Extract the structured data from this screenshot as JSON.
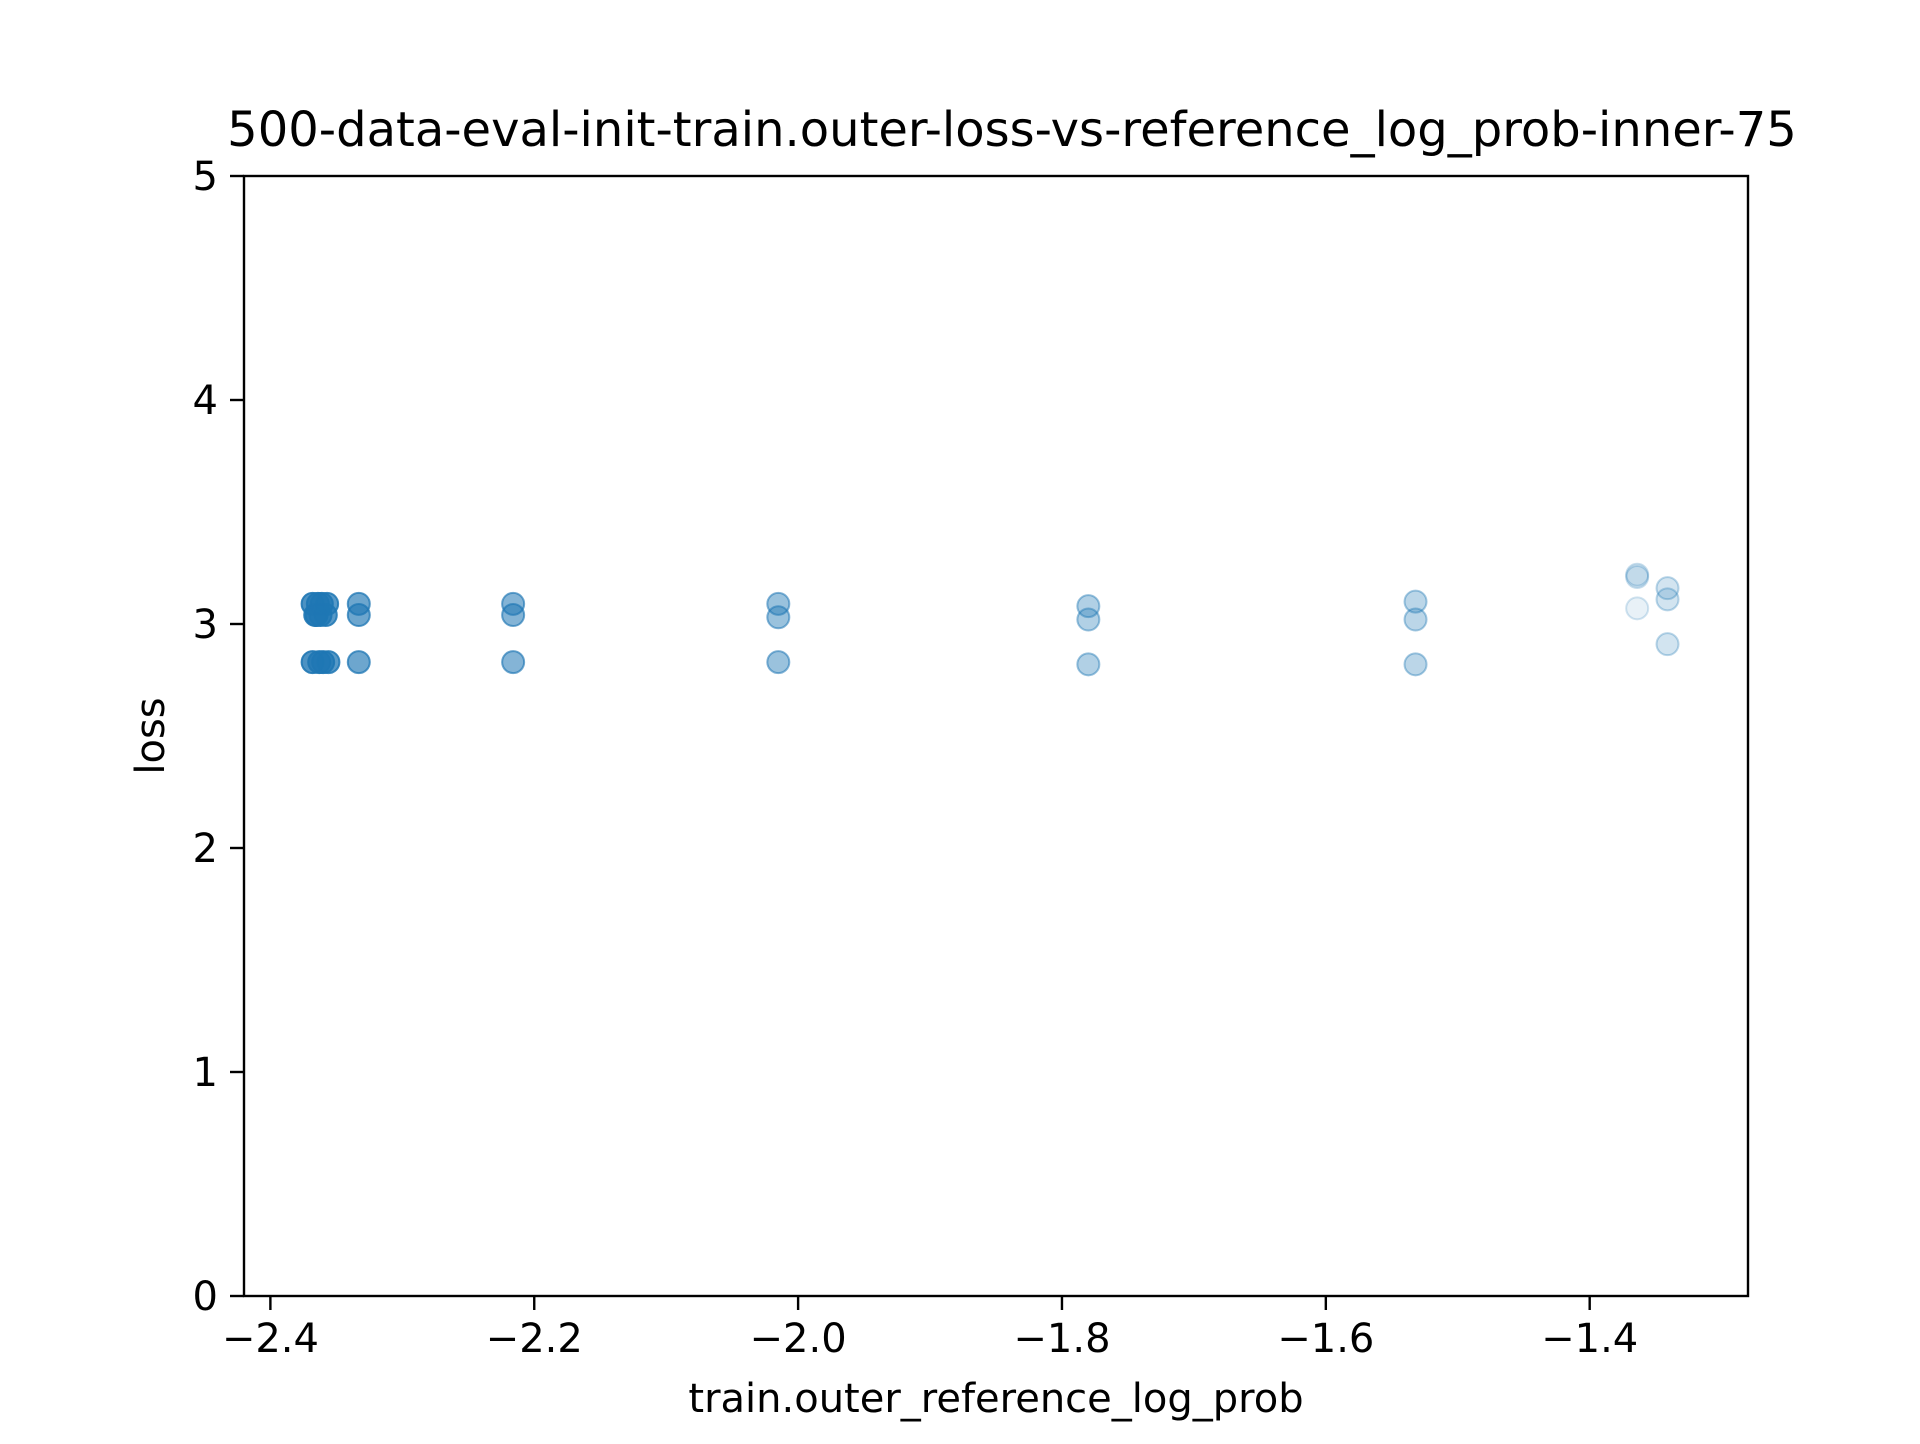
{
  "chart_data": {
    "type": "scatter",
    "title": "500-data-eval-init-train.outer-loss-vs-reference_log_prob-inner-75",
    "xlabel": "train.outer_reference_log_prob",
    "ylabel": "loss",
    "xlim": [
      -2.42,
      -1.28
    ],
    "ylim": [
      0,
      5
    ],
    "xticks": [
      -2.4,
      -2.2,
      -2.0,
      -1.8,
      -1.6,
      -1.4
    ],
    "xtick_labels": [
      "−2.4",
      "−2.2",
      "−2.0",
      "−1.8",
      "−1.6",
      "−1.4"
    ],
    "yticks": [
      0,
      1,
      2,
      3,
      4,
      5
    ],
    "ytick_labels": [
      "0",
      "1",
      "2",
      "3",
      "4",
      "5"
    ],
    "grid": false,
    "marker_color": "#1f77b4",
    "points": [
      {
        "x": -2.368,
        "y": 3.09,
        "alpha": 0.8
      },
      {
        "x": -2.365,
        "y": 3.04,
        "alpha": 0.8
      },
      {
        "x": -2.368,
        "y": 2.83,
        "alpha": 0.8
      },
      {
        "x": -2.364,
        "y": 3.09,
        "alpha": 0.8
      },
      {
        "x": -2.366,
        "y": 3.04,
        "alpha": 0.8
      },
      {
        "x": -2.363,
        "y": 2.83,
        "alpha": 0.8
      },
      {
        "x": -2.361,
        "y": 3.09,
        "alpha": 0.8
      },
      {
        "x": -2.362,
        "y": 3.04,
        "alpha": 0.8
      },
      {
        "x": -2.36,
        "y": 2.83,
        "alpha": 0.8
      },
      {
        "x": -2.357,
        "y": 3.09,
        "alpha": 0.75
      },
      {
        "x": -2.358,
        "y": 3.04,
        "alpha": 0.75
      },
      {
        "x": -2.356,
        "y": 2.83,
        "alpha": 0.75
      },
      {
        "x": -2.333,
        "y": 3.09,
        "alpha": 0.65
      },
      {
        "x": -2.333,
        "y": 3.04,
        "alpha": 0.65
      },
      {
        "x": -2.333,
        "y": 2.83,
        "alpha": 0.65
      },
      {
        "x": -2.216,
        "y": 3.09,
        "alpha": 0.55
      },
      {
        "x": -2.216,
        "y": 3.04,
        "alpha": 0.55
      },
      {
        "x": -2.216,
        "y": 2.83,
        "alpha": 0.55
      },
      {
        "x": -2.015,
        "y": 3.09,
        "alpha": 0.45
      },
      {
        "x": -2.015,
        "y": 3.03,
        "alpha": 0.45
      },
      {
        "x": -2.015,
        "y": 2.83,
        "alpha": 0.45
      },
      {
        "x": -1.78,
        "y": 3.08,
        "alpha": 0.35
      },
      {
        "x": -1.78,
        "y": 3.02,
        "alpha": 0.35
      },
      {
        "x": -1.78,
        "y": 2.82,
        "alpha": 0.35
      },
      {
        "x": -1.532,
        "y": 3.1,
        "alpha": 0.3
      },
      {
        "x": -1.532,
        "y": 3.02,
        "alpha": 0.3
      },
      {
        "x": -1.532,
        "y": 2.82,
        "alpha": 0.3
      },
      {
        "x": -1.364,
        "y": 3.21,
        "alpha": 0.15
      },
      {
        "x": -1.364,
        "y": 3.22,
        "alpha": 0.15
      },
      {
        "x": -1.364,
        "y": 3.07,
        "alpha": 0.1
      },
      {
        "x": -1.341,
        "y": 3.16,
        "alpha": 0.2
      },
      {
        "x": -1.341,
        "y": 3.11,
        "alpha": 0.2
      },
      {
        "x": -1.341,
        "y": 2.91,
        "alpha": 0.2
      }
    ]
  }
}
